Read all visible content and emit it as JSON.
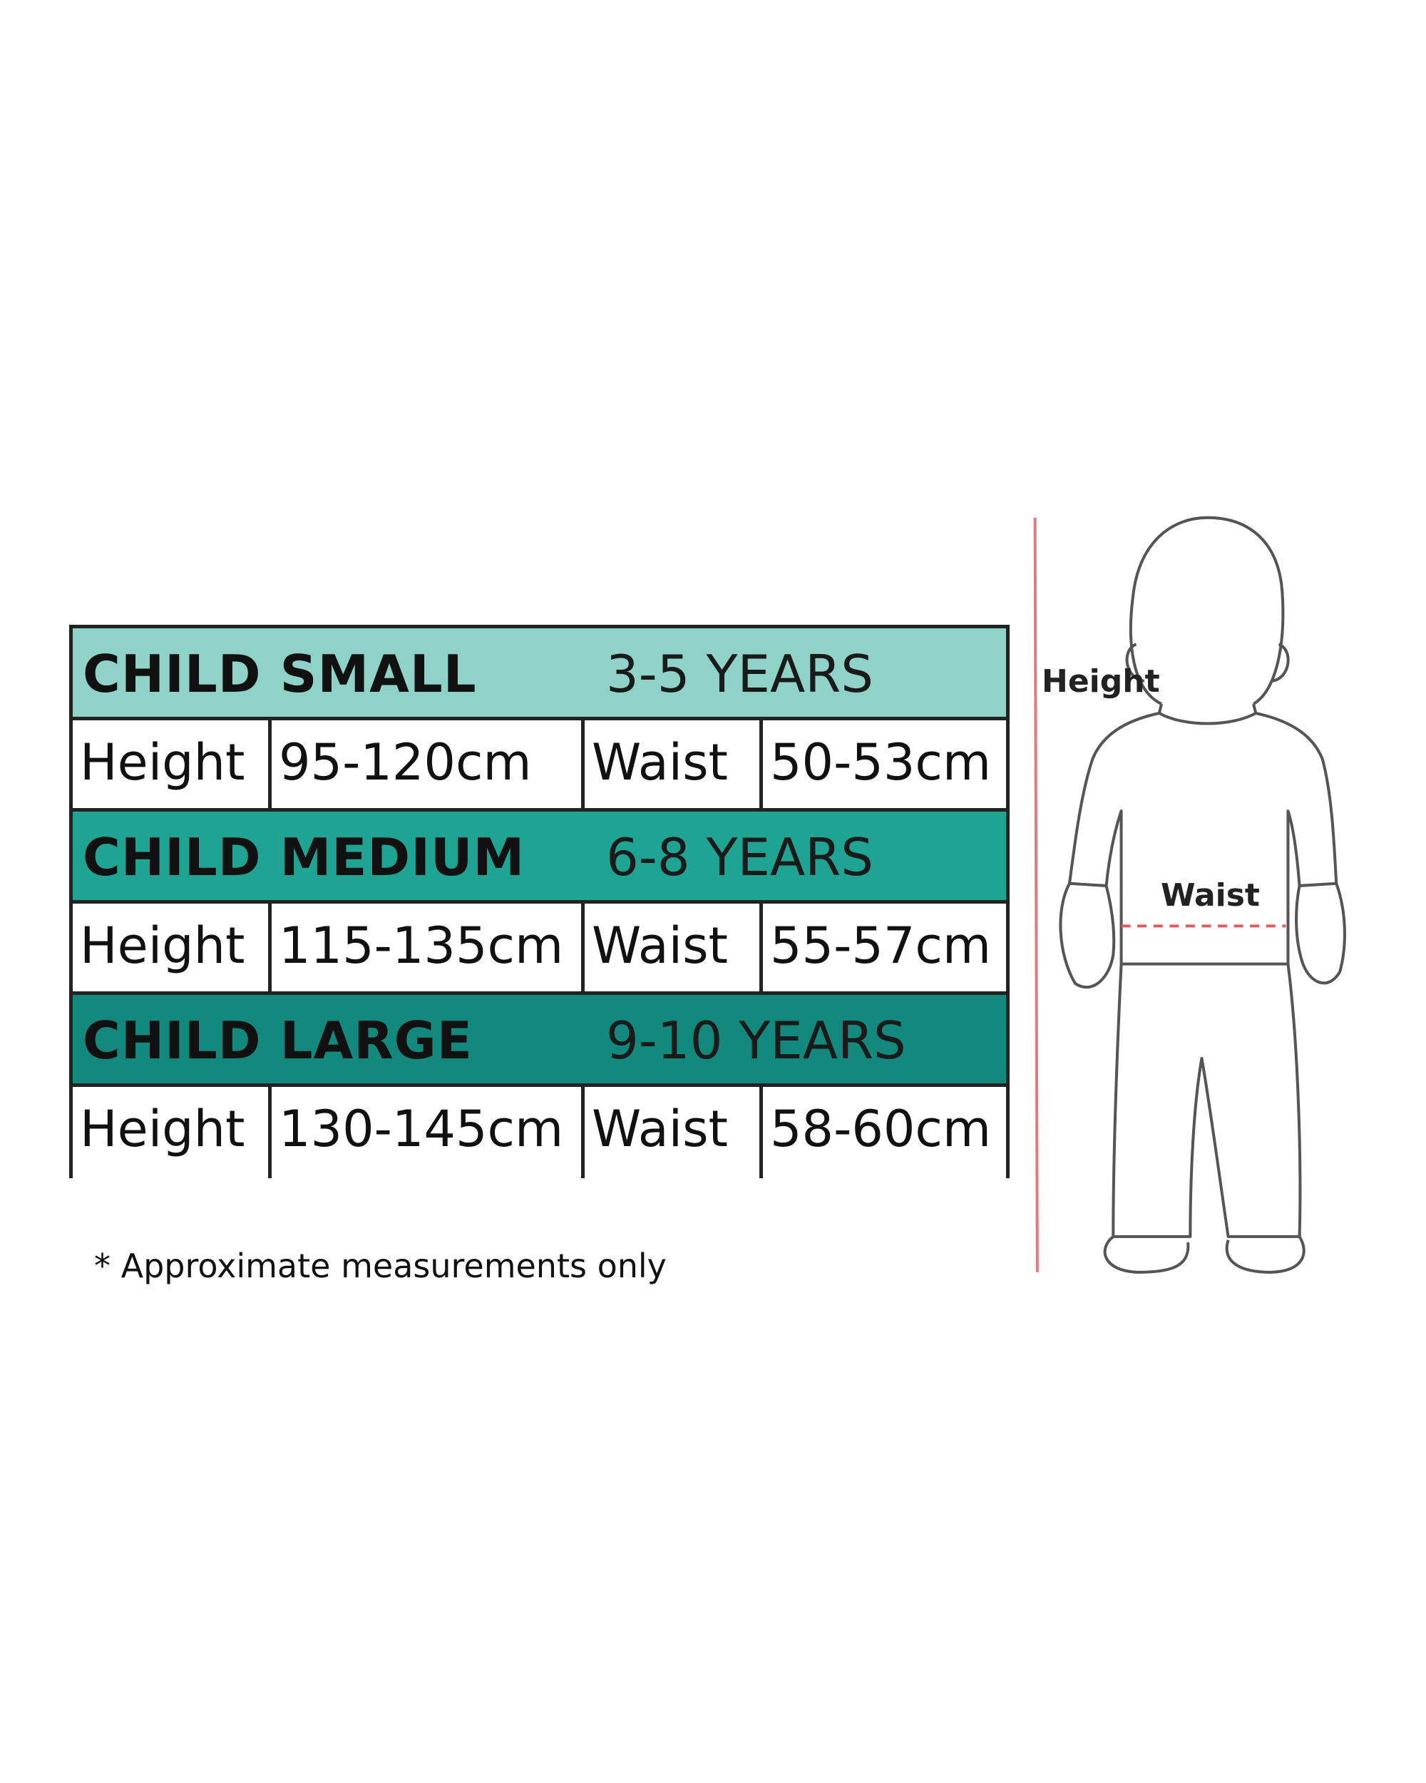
{
  "size_chart": {
    "rows": [
      {
        "size": "CHILD SMALL",
        "age": "3-5 YEARS",
        "height_label": "Height",
        "height": "95-120cm",
        "waist_label": "Waist",
        "waist": "50-53cm",
        "color": "#8fd3c8"
      },
      {
        "size": "CHILD MEDIUM",
        "age": "6-8 YEARS",
        "height_label": "Height",
        "height": "115-135cm",
        "waist_label": "Waist",
        "waist": "55-57cm",
        "color": "#1fa393"
      },
      {
        "size": "CHILD LARGE",
        "age": "9-10 YEARS",
        "height_label": "Height",
        "height": "130-145cm",
        "waist_label": "Waist",
        "waist": "58-60cm",
        "color": "#13887c"
      }
    ],
    "note": "* Approximate measurements only"
  },
  "figure": {
    "height_label": "Height",
    "waist_label": "Waist",
    "height_line_color": "#e07b80",
    "waist_line_color": "#e05a60"
  }
}
